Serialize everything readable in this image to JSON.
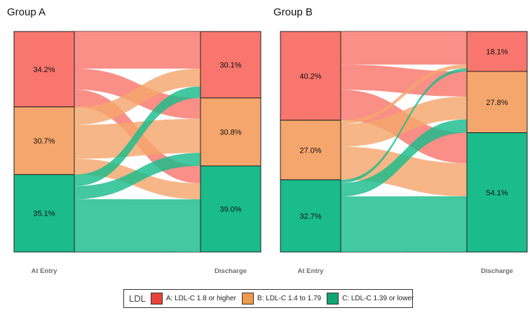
{
  "chart_data": {
    "type": "alluvial",
    "category_order": [
      "A",
      "B",
      "C"
    ],
    "categories": {
      "A": {
        "label": "A: LDL-C 1.8 or higher",
        "color": "#f8766d"
      },
      "B": {
        "label": "B: LDL-C 1.4 to 1.79",
        "color": "#f5a66c"
      },
      "C": {
        "label": "C: LDL-C 1.39 or lower",
        "color": "#1abc8c"
      }
    },
    "legend": {
      "title": "LDL",
      "position": "bottom"
    },
    "panels": [
      {
        "title": "Group A",
        "xlabels": [
          "At Entry",
          "Discharge"
        ],
        "entry": {
          "A": 34.2,
          "B": 30.7,
          "C": 35.1
        },
        "discharge": {
          "A": 30.1,
          "B": 30.8,
          "C": 39.0
        },
        "entry_labels": [
          "34.2%",
          "30.7%",
          "35.1%"
        ],
        "discharge_labels": [
          "30.1%",
          "30.8%",
          "39.0%"
        ],
        "flows": [
          {
            "from": "A",
            "to": "A",
            "value": 16.8
          },
          {
            "from": "A",
            "to": "B",
            "value": 9.5
          },
          {
            "from": "A",
            "to": "C",
            "value": 7.9
          },
          {
            "from": "B",
            "to": "A",
            "value": 8.1
          },
          {
            "from": "B",
            "to": "B",
            "value": 15.4
          },
          {
            "from": "B",
            "to": "C",
            "value": 7.2
          },
          {
            "from": "C",
            "to": "A",
            "value": 5.2
          },
          {
            "from": "C",
            "to": "B",
            "value": 5.9
          },
          {
            "from": "C",
            "to": "C",
            "value": 23.9
          }
        ]
      },
      {
        "title": "Group B",
        "xlabels": [
          "At Entry",
          "Discharge"
        ],
        "entry": {
          "A": 40.2,
          "B": 27.0,
          "C": 32.7
        },
        "discharge": {
          "A": 18.1,
          "B": 27.8,
          "C": 54.1
        },
        "entry_labels": [
          "40.2%",
          "27.0%",
          "32.7%"
        ],
        "discharge_labels": [
          "18.1%",
          "27.8%",
          "54.1%"
        ],
        "flows": [
          {
            "from": "A",
            "to": "A",
            "value": 15.0
          },
          {
            "from": "A",
            "to": "B",
            "value": 11.4
          },
          {
            "from": "A",
            "to": "C",
            "value": 13.8
          },
          {
            "from": "B",
            "to": "A",
            "value": 1.7
          },
          {
            "from": "B",
            "to": "B",
            "value": 10.3
          },
          {
            "from": "B",
            "to": "C",
            "value": 15.0
          },
          {
            "from": "C",
            "to": "A",
            "value": 1.4
          },
          {
            "from": "C",
            "to": "B",
            "value": 6.1
          },
          {
            "from": "C",
            "to": "C",
            "value": 25.2
          }
        ]
      }
    ]
  }
}
